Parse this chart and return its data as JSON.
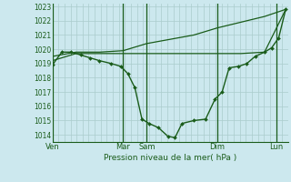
{
  "xlabel": "Pression niveau de la mer( hPa )",
  "bg_color": "#cce8ee",
  "grid_color": "#aacccc",
  "line_color": "#1a5c1a",
  "ylim": [
    1013.5,
    1023.2
  ],
  "yticks": [
    1014,
    1015,
    1016,
    1017,
    1018,
    1019,
    1020,
    1021,
    1022,
    1023
  ],
  "day_labels": [
    "Ven",
    "Mar",
    "Sam",
    "Dim",
    "Lun"
  ],
  "day_positions": [
    0,
    60,
    80,
    140,
    190
  ],
  "vline_positions": [
    0,
    60,
    80,
    140,
    190
  ],
  "xlim": [
    0,
    200
  ],
  "line1_x": [
    0,
    8,
    16,
    24,
    32,
    40,
    50,
    58,
    64,
    70,
    76,
    82,
    90,
    98,
    104,
    110,
    120,
    130,
    138,
    144,
    150,
    158,
    165,
    172,
    180,
    186,
    192,
    198
  ],
  "line1_y": [
    1018.9,
    1019.8,
    1019.8,
    1019.6,
    1019.4,
    1019.2,
    1019.0,
    1018.8,
    1018.3,
    1017.3,
    1015.1,
    1014.8,
    1014.5,
    1013.9,
    1013.8,
    1014.8,
    1015.0,
    1015.1,
    1016.5,
    1017.0,
    1018.7,
    1018.8,
    1019.0,
    1019.5,
    1019.8,
    1020.1,
    1020.8,
    1022.8
  ],
  "line2_x": [
    0,
    20,
    40,
    60,
    80,
    100,
    120,
    140,
    160,
    180,
    198
  ],
  "line2_y": [
    1019.5,
    1019.8,
    1019.8,
    1019.9,
    1020.4,
    1020.7,
    1021.0,
    1021.5,
    1021.9,
    1022.3,
    1022.8
  ],
  "line3_x": [
    0,
    20,
    40,
    60,
    80,
    100,
    120,
    140,
    160,
    180,
    198
  ],
  "line3_y": [
    1019.2,
    1019.7,
    1019.7,
    1019.7,
    1019.7,
    1019.7,
    1019.7,
    1019.7,
    1019.7,
    1019.8,
    1022.8
  ]
}
